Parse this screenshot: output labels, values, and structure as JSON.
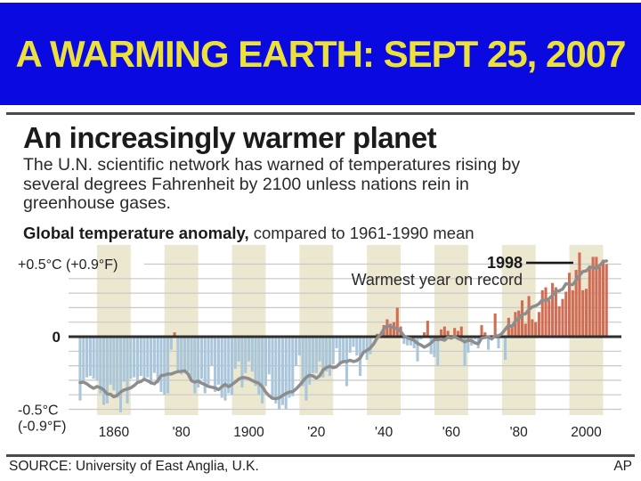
{
  "banner": {
    "title": "A WARMING EARTH: SEPT 25, 2007",
    "bg_color": "#0909e0",
    "text_color": "#ece13a"
  },
  "infographic": {
    "headline": "An increasingly warmer planet",
    "intro": "The U.N. scientific network has warned of temperatures rising by\nseveral degrees Fahrenheit by 2100 unless nations rein in\ngreenhouse gases.",
    "chart_heading_bold": "Global temperature anomaly,",
    "chart_heading_rest": " compared to 1961-1990 mean",
    "source": "SOURCE: University of East Anglia, U.K.",
    "credit": "AP"
  },
  "chart_data": {
    "type": "bar",
    "title": "Global temperature anomaly, compared to 1961-1990 mean",
    "x_start_year": 1850,
    "x_end_year": 2006,
    "x_tick_years": [
      1860,
      1880,
      1900,
      1920,
      1940,
      1960,
      1980,
      2000
    ],
    "x_tick_labels": [
      "1860",
      "'80",
      "1900",
      "'20",
      "'40",
      "'60",
      "'80",
      "2000"
    ],
    "y_axis": {
      "top_label": "+0.5°C (+0.9°F)",
      "zero_label": "0",
      "bottom_label_line1": "-0.5°C",
      "bottom_label_line2": "(-0.9°F)",
      "ylim": [
        -0.56,
        0.63
      ],
      "gridline_step": 0.1,
      "grid": true
    },
    "annotation": {
      "year_label": "1998",
      "text": "Warmest year on record",
      "target_year": 1998
    },
    "series": [
      {
        "name": "Annual temperature anomaly (°C vs 1961-1990 mean)",
        "values": [
          -0.44,
          -0.3,
          -0.28,
          -0.27,
          -0.29,
          -0.3,
          -0.39,
          -0.47,
          -0.46,
          -0.33,
          -0.37,
          -0.42,
          -0.52,
          -0.31,
          -0.46,
          -0.29,
          -0.28,
          -0.32,
          -0.27,
          -0.3,
          -0.28,
          -0.33,
          -0.25,
          -0.32,
          -0.38,
          -0.4,
          -0.39,
          -0.09,
          0.03,
          -0.25,
          -0.26,
          -0.25,
          -0.24,
          -0.31,
          -0.39,
          -0.35,
          -0.29,
          -0.39,
          -0.33,
          -0.2,
          -0.38,
          -0.33,
          -0.42,
          -0.44,
          -0.39,
          -0.4,
          -0.22,
          -0.17,
          -0.35,
          -0.25,
          -0.17,
          -0.24,
          -0.34,
          -0.4,
          -0.46,
          -0.34,
          -0.26,
          -0.43,
          -0.46,
          -0.5,
          -0.47,
          -0.5,
          -0.42,
          -0.41,
          -0.2,
          -0.13,
          -0.34,
          -0.44,
          -0.33,
          -0.25,
          -0.25,
          -0.17,
          -0.28,
          -0.24,
          -0.27,
          -0.19,
          -0.08,
          -0.18,
          -0.17,
          -0.34,
          -0.11,
          -0.07,
          -0.13,
          -0.27,
          -0.11,
          -0.16,
          -0.12,
          -0.01,
          0.02,
          0.0,
          0.08,
          0.12,
          0.09,
          0.1,
          0.2,
          0.07,
          -0.05,
          -0.06,
          -0.06,
          -0.08,
          -0.17,
          -0.02,
          0.03,
          0.11,
          -0.12,
          -0.14,
          -0.2,
          0.05,
          0.07,
          0.04,
          -0.02,
          0.06,
          0.04,
          0.07,
          -0.2,
          -0.11,
          -0.06,
          -0.02,
          -0.08,
          0.08,
          0.03,
          -0.09,
          0.01,
          0.16,
          -0.08,
          -0.01,
          -0.16,
          0.13,
          0.06,
          0.17,
          0.18,
          0.25,
          0.09,
          0.28,
          0.12,
          0.1,
          0.17,
          0.32,
          0.34,
          0.25,
          0.37,
          0.34,
          0.21,
          0.26,
          0.31,
          0.44,
          0.32,
          0.46,
          0.58,
          0.32,
          0.33,
          0.49,
          0.55,
          0.55,
          0.48,
          0.53,
          0.5
        ]
      },
      {
        "name": "Smoothed trend line",
        "derived": "centered 9-year moving average of annual values"
      }
    ],
    "colors": {
      "positive_bar": "#cf6e55",
      "negative_bar": "#a9c6da",
      "smoothed_line": "#8d8d8d",
      "decade_band": "#ece8d0",
      "gridline": "#c8c8c8",
      "zero_line": "#2f2f2f",
      "annotation_line": "#1a1a1a"
    },
    "legend": "none"
  }
}
